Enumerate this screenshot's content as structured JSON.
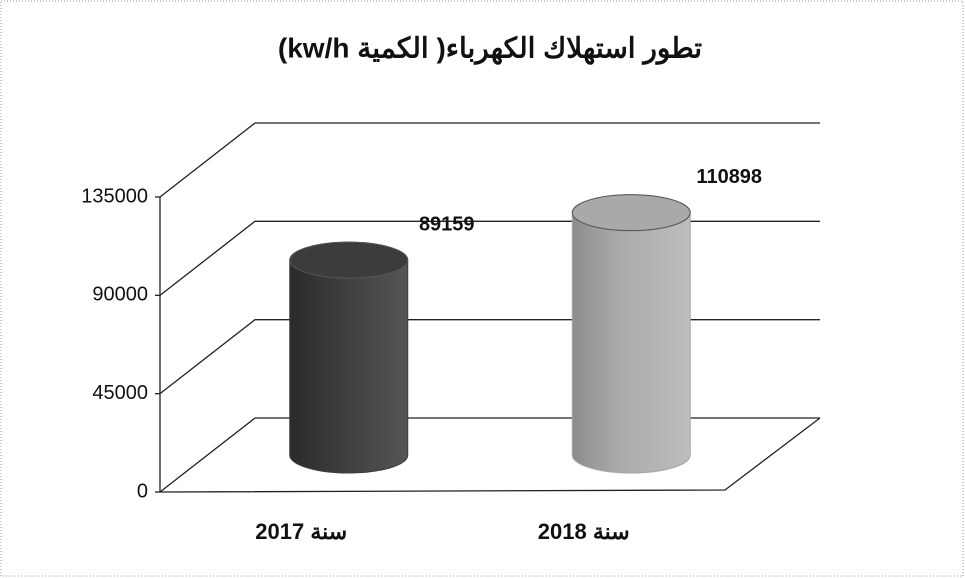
{
  "chart_data": {
    "type": "cylinder",
    "title": "تطور استهلاك الكهرباء( الكمية kw/h)",
    "categories": [
      "سنة 2017",
      "سنة 2018"
    ],
    "values": [
      89159,
      110898
    ],
    "colors": [
      "#3c3c3c",
      "#a9a9a9"
    ],
    "ylim": [
      0,
      135000
    ],
    "yticks": [
      0,
      45000,
      90000,
      135000
    ],
    "grid": true
  }
}
